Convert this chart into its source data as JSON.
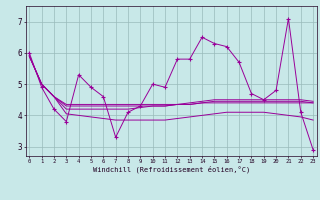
{
  "bg_color": "#c8e8e8",
  "line_color": "#990099",
  "grid_color": "#99bbbb",
  "ylim": [
    2.7,
    7.5
  ],
  "yticks": [
    3,
    4,
    5,
    6,
    7
  ],
  "xticks": [
    0,
    1,
    2,
    3,
    4,
    5,
    6,
    7,
    8,
    9,
    10,
    11,
    12,
    13,
    14,
    15,
    16,
    17,
    18,
    19,
    20,
    21,
    22,
    23
  ],
  "xlabel": "Windchill (Refroidissement éolien,°C)",
  "series_main": [
    6.0,
    4.9,
    4.2,
    3.8,
    5.3,
    4.9,
    4.6,
    3.3,
    4.1,
    4.3,
    5.0,
    4.9,
    5.8,
    5.8,
    6.5,
    6.3,
    6.2,
    5.7,
    4.7,
    4.5,
    4.8,
    7.1,
    4.1,
    2.9
  ],
  "series_t1": [
    5.9,
    5.0,
    4.6,
    4.35,
    4.35,
    4.35,
    4.35,
    4.35,
    4.35,
    4.35,
    4.35,
    4.35,
    4.35,
    4.35,
    4.4,
    4.4,
    4.4,
    4.4,
    4.4,
    4.4,
    4.4,
    4.4,
    4.4,
    4.4
  ],
  "series_t2": [
    5.9,
    5.0,
    4.6,
    4.3,
    4.3,
    4.3,
    4.3,
    4.3,
    4.3,
    4.3,
    4.3,
    4.3,
    4.35,
    4.35,
    4.4,
    4.45,
    4.45,
    4.45,
    4.45,
    4.45,
    4.45,
    4.45,
    4.45,
    4.4
  ],
  "series_t3": [
    5.9,
    5.0,
    4.6,
    4.2,
    4.2,
    4.2,
    4.2,
    4.2,
    4.2,
    4.25,
    4.3,
    4.3,
    4.35,
    4.4,
    4.45,
    4.5,
    4.5,
    4.5,
    4.5,
    4.5,
    4.5,
    4.5,
    4.5,
    4.45
  ],
  "series_t4": [
    5.9,
    5.0,
    4.6,
    4.05,
    4.0,
    3.95,
    3.9,
    3.85,
    3.85,
    3.85,
    3.85,
    3.85,
    3.9,
    3.95,
    4.0,
    4.05,
    4.1,
    4.1,
    4.1,
    4.1,
    4.05,
    4.0,
    3.95,
    3.85
  ]
}
